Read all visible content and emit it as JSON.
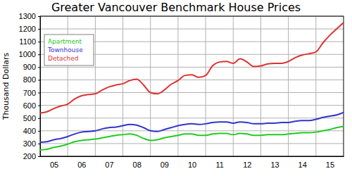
{
  "chart_data": {
    "type": "line",
    "title": "Greater Vancouver Benchmark House Prices",
    "y_label": "Thousand Dollars",
    "x": [
      2005,
      2005.25,
      2005.5,
      2005.75,
      2006,
      2006.25,
      2006.5,
      2006.75,
      2007,
      2007.25,
      2007.5,
      2007.75,
      2008,
      2008.25,
      2008.5,
      2008.75,
      2009,
      2009.25,
      2009.5,
      2009.75,
      2010,
      2010.25,
      2010.5,
      2010.75,
      2011,
      2011.25,
      2011.5,
      2011.75,
      2012,
      2012.25,
      2012.5,
      2012.75,
      2013,
      2013.25,
      2013.5,
      2013.75,
      2014,
      2014.25,
      2014.5,
      2014.75,
      2015,
      2015.25,
      2015.5,
      2015.75,
      2016
    ],
    "series": [
      {
        "name": "Apartment",
        "color": "#22cc22",
        "values": [
          250,
          255,
          270,
          280,
          295,
          315,
          325,
          330,
          335,
          345,
          355,
          365,
          370,
          375,
          365,
          340,
          325,
          330,
          345,
          355,
          365,
          375,
          375,
          365,
          365,
          375,
          380,
          380,
          370,
          380,
          375,
          365,
          365,
          370,
          370,
          370,
          375,
          380,
          385,
          385,
          390,
          400,
          410,
          425,
          435
        ]
      },
      {
        "name": "Townhouse",
        "color": "#3333cc",
        "values": [
          310,
          315,
          330,
          340,
          355,
          375,
          390,
          395,
          400,
          415,
          425,
          430,
          440,
          450,
          445,
          425,
          400,
          395,
          410,
          425,
          440,
          450,
          455,
          450,
          455,
          465,
          470,
          470,
          460,
          470,
          465,
          455,
          455,
          460,
          460,
          465,
          465,
          475,
          480,
          480,
          490,
          505,
          515,
          525,
          545
        ]
      },
      {
        "name": "Detached",
        "color": "#dd3333",
        "values": [
          540,
          550,
          575,
          595,
          610,
          650,
          675,
          685,
          690,
          720,
          745,
          760,
          770,
          795,
          805,
          760,
          700,
          690,
          720,
          765,
          795,
          835,
          840,
          820,
          835,
          910,
          940,
          945,
          930,
          965,
          940,
          905,
          910,
          925,
          930,
          930,
          945,
          975,
          995,
          1005,
          1020,
          1090,
          1150,
          1200,
          1250
        ]
      }
    ],
    "xlim": [
      2005,
      2016
    ],
    "xticks": [
      {
        "value": 2005.5,
        "label": "05"
      },
      {
        "value": 2006.5,
        "label": "06"
      },
      {
        "value": 2007.5,
        "label": "07"
      },
      {
        "value": 2008.5,
        "label": "08"
      },
      {
        "value": 2009.5,
        "label": "09"
      },
      {
        "value": 2010.5,
        "label": "10"
      },
      {
        "value": 2011.5,
        "label": "11"
      },
      {
        "value": 2012.5,
        "label": "12"
      },
      {
        "value": 2013.5,
        "label": "13"
      },
      {
        "value": 2014.5,
        "label": "14"
      },
      {
        "value": 2015.5,
        "label": "15"
      }
    ],
    "ylim": [
      200,
      1300
    ],
    "yticks": [
      200,
      300,
      400,
      500,
      600,
      700,
      800,
      900,
      1000,
      1100,
      1200,
      1300
    ],
    "grid": true,
    "legend": "upper left"
  }
}
